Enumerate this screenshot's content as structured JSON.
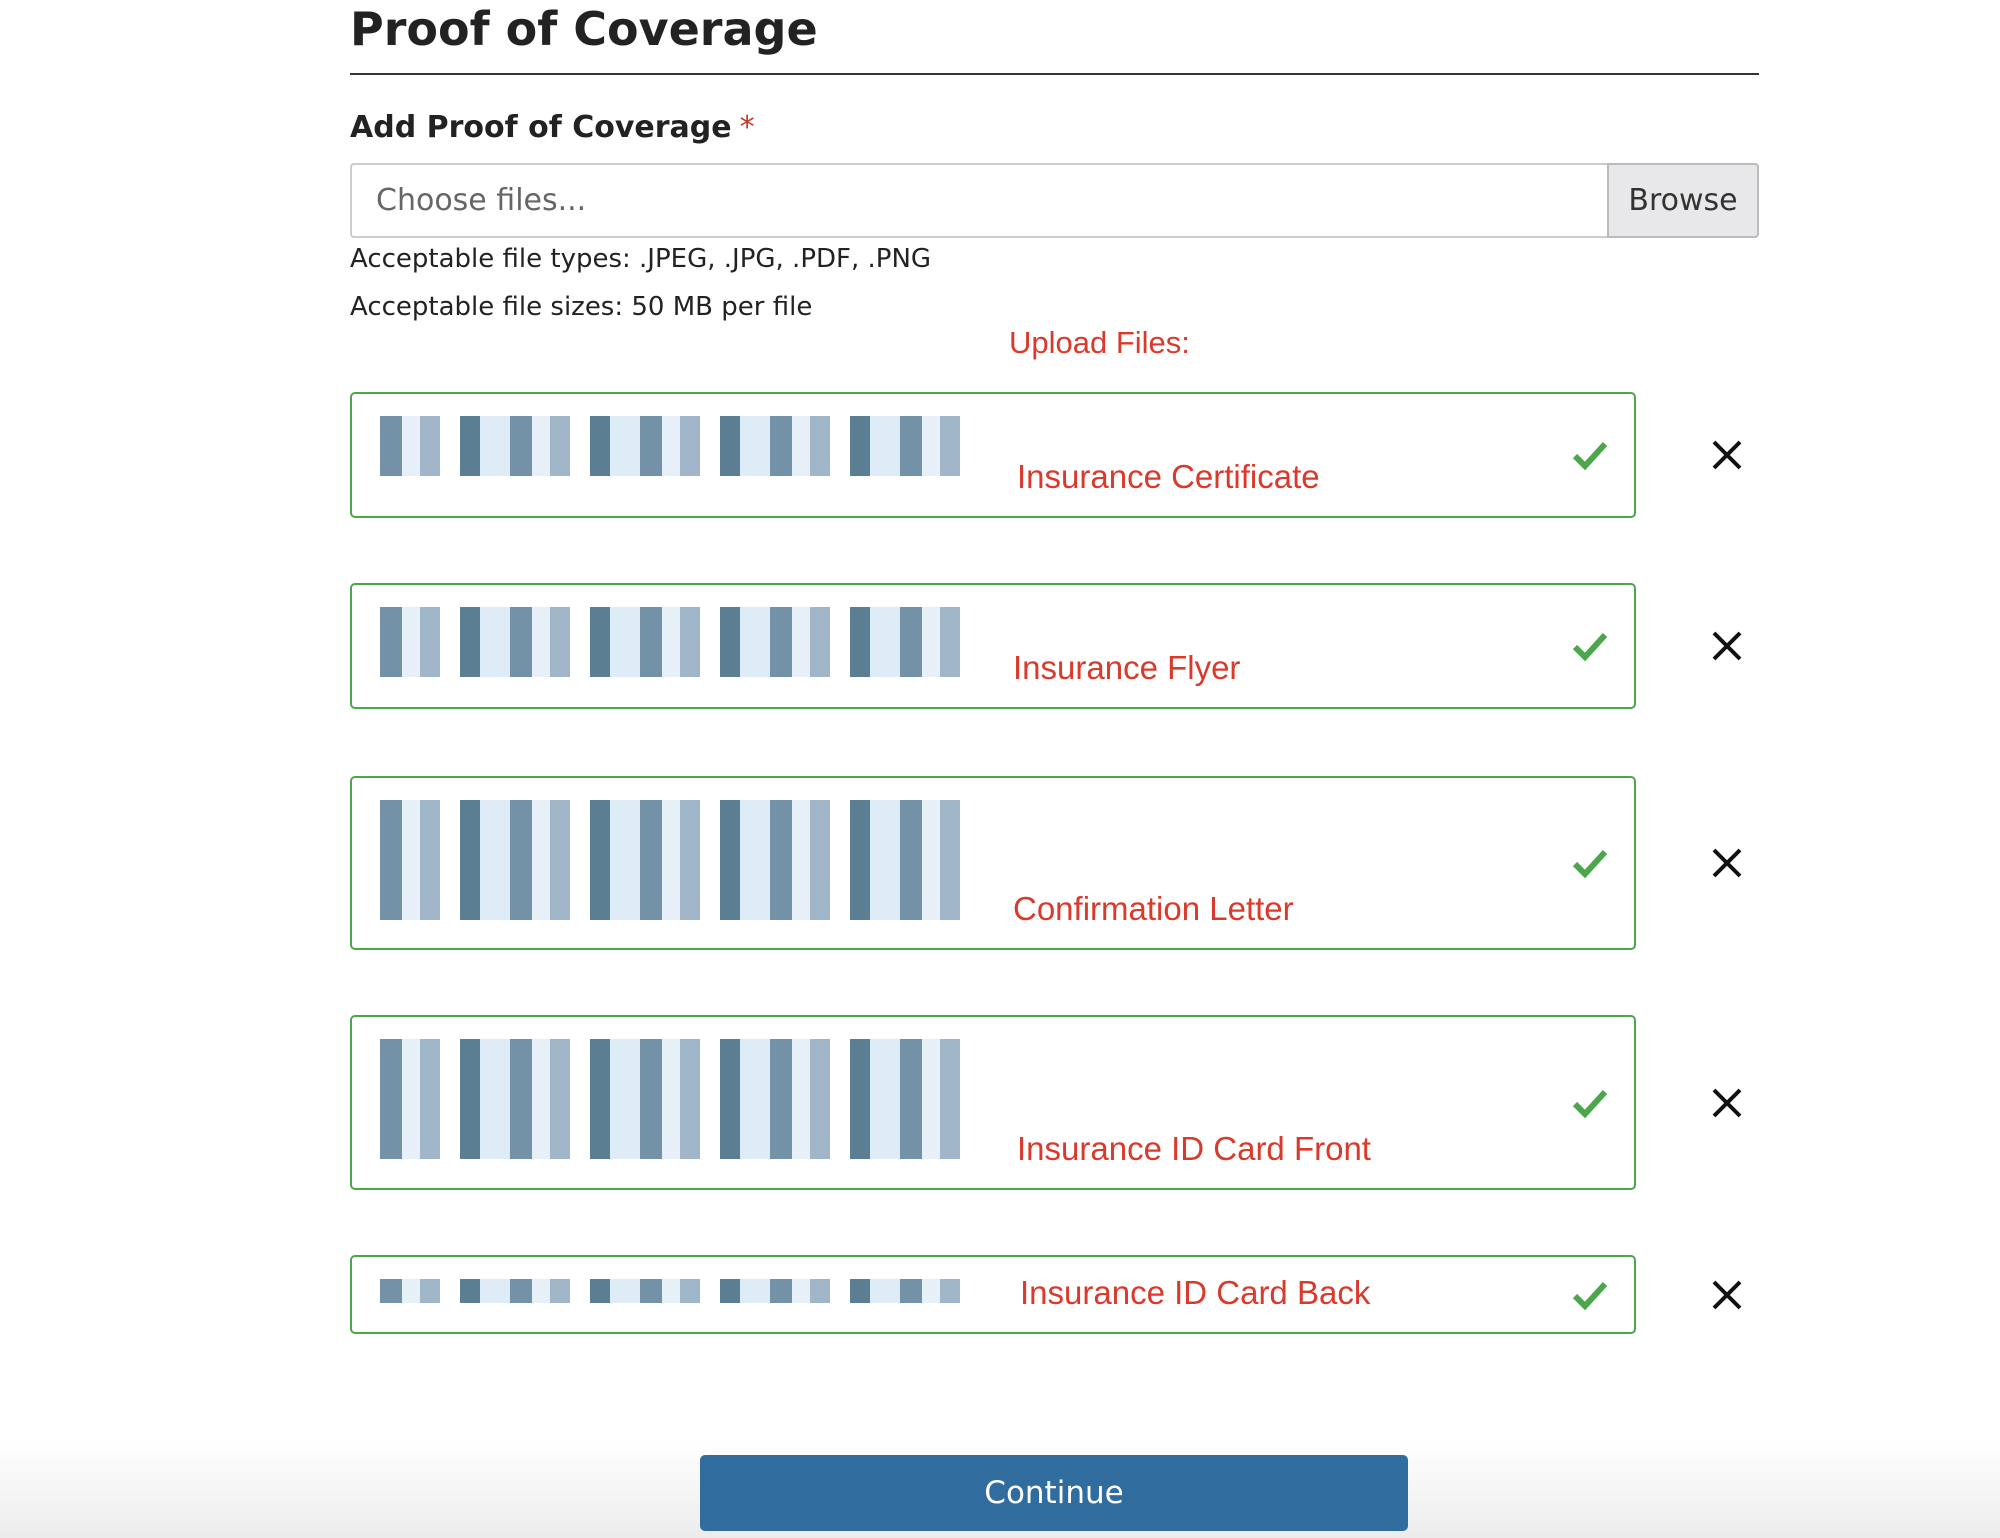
{
  "header": {
    "title": "Proof of Coverage"
  },
  "field": {
    "label": "Add Proof of Coverage",
    "required": "*",
    "placeholder": "Choose files...",
    "button": "Browse"
  },
  "hints": [
    "Acceptable file types: .JPEG, .JPG, .PDF, .PNG",
    "Acceptable file sizes: 50 MB per file"
  ],
  "upload_heading": "Upload Files:",
  "files": [
    "Insurance Certificate",
    "Insurance Flyer",
    "Confirmation Letter",
    "Insurance ID Card Front",
    "Insurance ID Card Back"
  ],
  "continue": "Continue"
}
